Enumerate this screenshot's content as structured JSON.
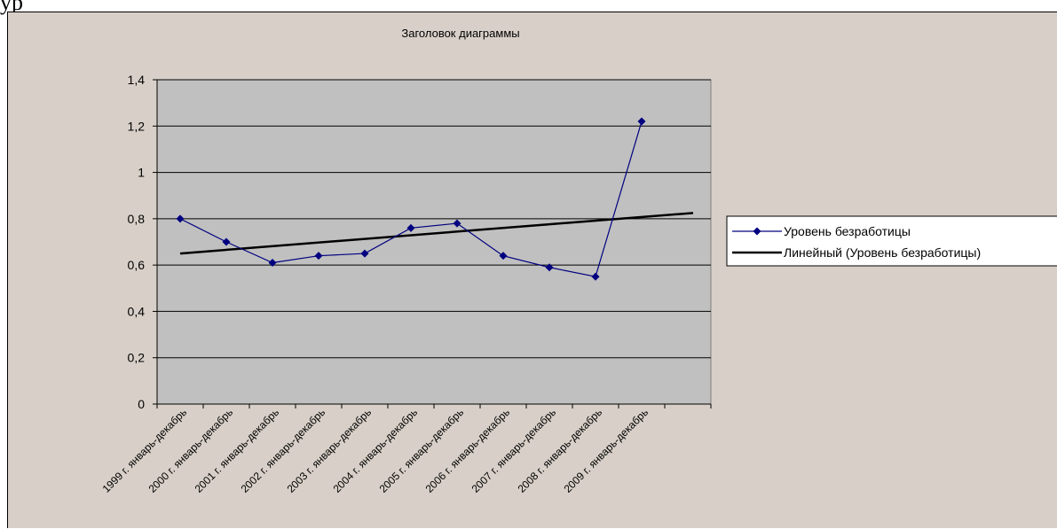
{
  "page_text": "ур",
  "chart_data": {
    "type": "line",
    "title": "Заголовок диаграммы",
    "categories": [
      "1999 г. январь-декабрь",
      "2000 г. январь-декабрь",
      "2001 г. январь-декабрь",
      "2002 г. январь-декабрь",
      "2003 г. январь-декабрь",
      "2004 г. январь-декабрь",
      "2005 г. январь-декабрь",
      "2006 г. январь-декабрь",
      "2007 г. январь-декабрь",
      "2008 г. январь-декабрь",
      "2009 г. январь-декабрь"
    ],
    "series": [
      {
        "name": "Уровень безработицы",
        "values": [
          0.8,
          0.7,
          0.61,
          0.64,
          0.65,
          0.76,
          0.78,
          0.64,
          0.59,
          0.55,
          1.22
        ],
        "color": "#000080",
        "marker": "diamond"
      },
      {
        "name": "Линейный (Уровень безработицы)",
        "trendline": "linear",
        "start": 0.65,
        "end": 0.825,
        "color": "#000000"
      }
    ],
    "ylim": [
      0,
      1.4
    ],
    "yticks": [
      "0",
      "0,2",
      "0,4",
      "0,6",
      "0,8",
      "1",
      "1,2",
      "1,4"
    ],
    "grid": true,
    "plot_background": "#c0c0c0",
    "chart_background": "#d8d0c8",
    "legend_position": "right"
  }
}
